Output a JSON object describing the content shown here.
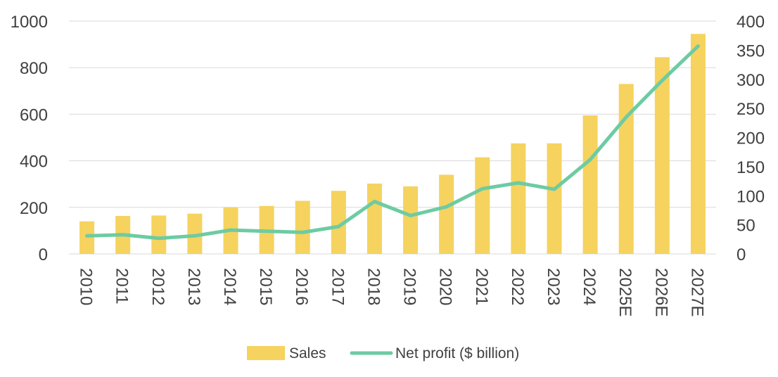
{
  "chart_data": {
    "type": "bar+line",
    "categories": [
      "2010",
      "2011",
      "2012",
      "2013",
      "2014",
      "2015",
      "2016",
      "2017",
      "2018",
      "2019",
      "2020",
      "2021",
      "2022",
      "2023",
      "2024",
      "2025E",
      "2026E",
      "2027E"
    ],
    "series": [
      {
        "name": "Sales",
        "type": "bar",
        "axis": "left",
        "color": "#F5D35E",
        "values": [
          140,
          163,
          165,
          173,
          200,
          206,
          228,
          271,
          302,
          290,
          340,
          415,
          475,
          475,
          595,
          730,
          845,
          945
        ]
      },
      {
        "name": "Net profit ($ billion)",
        "type": "line",
        "axis": "right",
        "color": "#6DCBA3",
        "values": [
          31,
          33,
          27,
          31,
          41,
          39,
          37,
          47,
          90,
          66,
          81,
          112,
          122,
          111,
          162,
          235,
          298,
          357
        ]
      }
    ],
    "y_left": {
      "min": 0,
      "max": 1000,
      "ticks": [
        0,
        200,
        400,
        600,
        800,
        1000
      ]
    },
    "y_right": {
      "min": 0,
      "max": 400,
      "ticks": [
        0,
        50,
        100,
        150,
        200,
        250,
        300,
        350,
        400
      ]
    },
    "grid": true,
    "legend": {
      "position": "bottom",
      "entries": [
        "Sales",
        "Net profit ($ billion)"
      ]
    },
    "title": "",
    "xlabel": "",
    "ylabel": ""
  }
}
